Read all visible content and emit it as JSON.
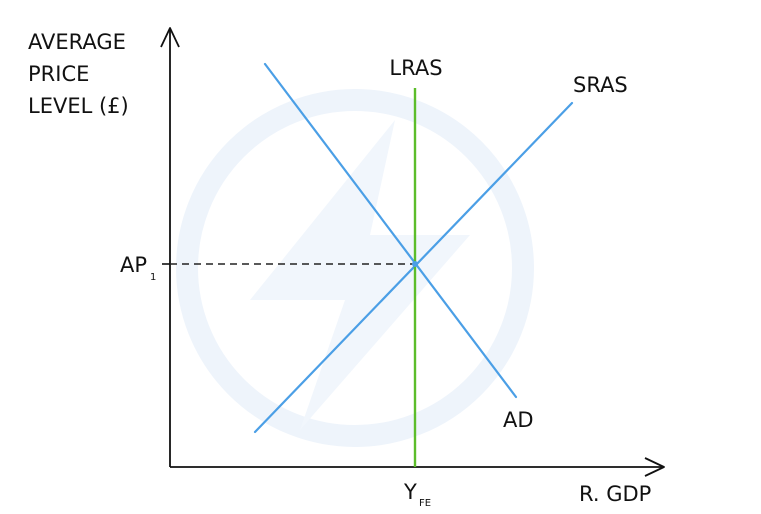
{
  "diagram": {
    "y_axis_label": [
      "AVERAGE",
      "PRICE",
      "LEVEL (£)"
    ],
    "x_axis_label": "R. GDP",
    "curves": {
      "lras": "LRAS",
      "sras": "SRAS",
      "ad": "AD"
    },
    "price_label": {
      "main": "AP",
      "sub": "1"
    },
    "output_label": {
      "main": "Y",
      "sub": "FE"
    },
    "colors": {
      "axes": "#111111",
      "ad_sras": "#4b9fe6",
      "lras": "#5cbd2a",
      "guide": "#222222",
      "watermark": "#eef4fb"
    }
  }
}
